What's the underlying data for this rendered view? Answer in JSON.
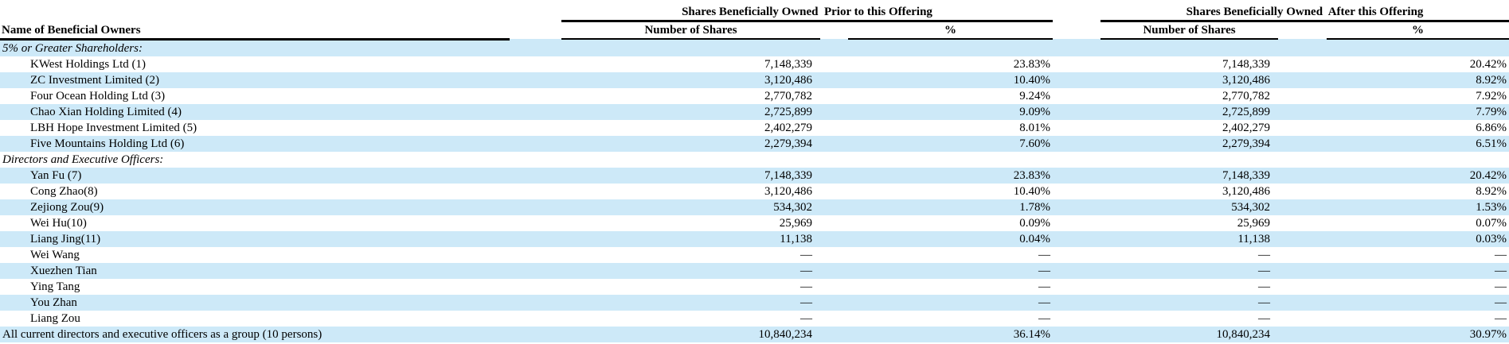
{
  "table": {
    "groups": {
      "prior": "Shares Beneficially Owned  Prior to this Offering",
      "after": "Shares Beneficially Owned  After this Offering"
    },
    "columns": {
      "name": "Name of Beneficial Owners",
      "shares": "Number of Shares",
      "percent": "%"
    },
    "colors": {
      "stripe": "#cde9f8",
      "rule": "#000000",
      "text": "#000000"
    },
    "rows": [
      {
        "style": "section",
        "name": "5% or Greater Shareholders:",
        "prior_shares": "",
        "prior_pct": "",
        "after_shares": "",
        "after_pct": ""
      },
      {
        "style": "member",
        "name": "KWest Holdings Ltd (1)",
        "prior_shares": "7,148,339",
        "prior_pct": "23.83%",
        "after_shares": "7,148,339",
        "after_pct": "20.42%"
      },
      {
        "style": "member",
        "name": "ZC Investment Limited (2)",
        "prior_shares": "3,120,486",
        "prior_pct": "10.40%",
        "after_shares": "3,120,486",
        "after_pct": "8.92%"
      },
      {
        "style": "member",
        "name": "Four Ocean Holding Ltd (3)",
        "prior_shares": "2,770,782",
        "prior_pct": "9.24%",
        "after_shares": "2,770,782",
        "after_pct": "7.92%"
      },
      {
        "style": "member",
        "name": "Chao Xian Holding Limited (4)",
        "prior_shares": "2,725,899",
        "prior_pct": "9.09%",
        "after_shares": "2,725,899",
        "after_pct": "7.79%"
      },
      {
        "style": "member",
        "name": "LBH Hope Investment Limited (5)",
        "prior_shares": "2,402,279",
        "prior_pct": "8.01%",
        "after_shares": "2,402,279",
        "after_pct": "6.86%"
      },
      {
        "style": "member",
        "name": "Five Mountains Holding Ltd (6)",
        "prior_shares": "2,279,394",
        "prior_pct": "7.60%",
        "after_shares": "2,279,394",
        "after_pct": "6.51%"
      },
      {
        "style": "section",
        "name": "Directors and Executive Officers:",
        "prior_shares": "",
        "prior_pct": "",
        "after_shares": "",
        "after_pct": ""
      },
      {
        "style": "member",
        "name": "Yan Fu (7)",
        "prior_shares": "7,148,339",
        "prior_pct": "23.83%",
        "after_shares": "7,148,339",
        "after_pct": "20.42%"
      },
      {
        "style": "member",
        "name": "Cong Zhao(8)",
        "prior_shares": "3,120,486",
        "prior_pct": "10.40%",
        "after_shares": "3,120,486",
        "after_pct": "8.92%"
      },
      {
        "style": "member",
        "name": "Zejiong Zou(9)",
        "prior_shares": "534,302",
        "prior_pct": "1.78%",
        "after_shares": "534,302",
        "after_pct": "1.53%"
      },
      {
        "style": "member",
        "name": "Wei Hu(10)",
        "prior_shares": "25,969",
        "prior_pct": "0.09%",
        "after_shares": "25,969",
        "after_pct": "0.07%"
      },
      {
        "style": "member",
        "name": "Liang Jing(11)",
        "prior_shares": "11,138",
        "prior_pct": "0.04%",
        "after_shares": "11,138",
        "after_pct": "0.03%"
      },
      {
        "style": "member",
        "name": "Wei Wang",
        "prior_shares": "—",
        "prior_pct": "—",
        "after_shares": "—",
        "after_pct": "—"
      },
      {
        "style": "member",
        "name": "Xuezhen Tian",
        "prior_shares": "—",
        "prior_pct": "—",
        "after_shares": "—",
        "after_pct": "—"
      },
      {
        "style": "member",
        "name": "Ying Tang",
        "prior_shares": "—",
        "prior_pct": "—",
        "after_shares": "—",
        "after_pct": "—"
      },
      {
        "style": "member",
        "name": "You Zhan",
        "prior_shares": "—",
        "prior_pct": "—",
        "after_shares": "—",
        "after_pct": "—"
      },
      {
        "style": "member",
        "name": "Liang Zou",
        "prior_shares": "—",
        "prior_pct": "—",
        "after_shares": "—",
        "after_pct": "—"
      },
      {
        "style": "total",
        "name": "All current directors and executive officers as a group (10 persons)",
        "prior_shares": "10,840,234",
        "prior_pct": "36.14%",
        "after_shares": "10,840,234",
        "after_pct": "30.97%"
      }
    ]
  }
}
